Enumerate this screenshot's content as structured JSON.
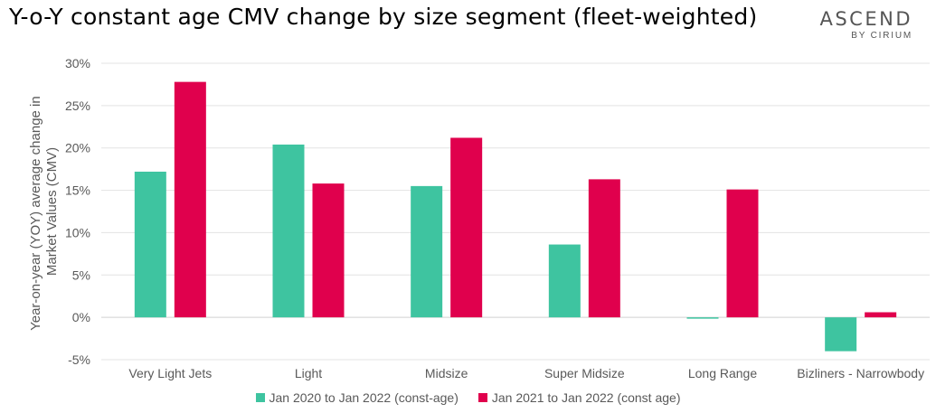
{
  "header": {
    "title": "Y-o-Y constant age CMV change by size segment (fleet-weighted)",
    "logo_main": "ASCEND",
    "logo_sub": "BY CIRIUM"
  },
  "chart_data": {
    "type": "bar",
    "ylabel_line1": "Year-on-year (YOY) average change in",
    "ylabel_line2": "Market Values (CMV)",
    "xlabel": "",
    "ylim": [
      -5,
      30
    ],
    "yticks": [
      -5,
      0,
      5,
      10,
      15,
      20,
      25,
      30
    ],
    "ytick_format": "percent",
    "grid": true,
    "legend_position": "bottom",
    "categories": [
      "Very Light Jets",
      "Light",
      "Midsize",
      "Super Midsize",
      "Long Range",
      "Bizliners - Narrowbody"
    ],
    "series": [
      {
        "name": "Jan 2020 to Jan 2022 (const-age)",
        "color": "#3ec4a0",
        "values": [
          17.2,
          20.4,
          15.5,
          8.6,
          -0.1,
          -4.0
        ]
      },
      {
        "name": "Jan 2021 to Jan 2022 (const age)",
        "color": "#e0004d",
        "values": [
          27.8,
          15.8,
          21.2,
          16.3,
          15.1,
          0.6
        ]
      }
    ]
  }
}
